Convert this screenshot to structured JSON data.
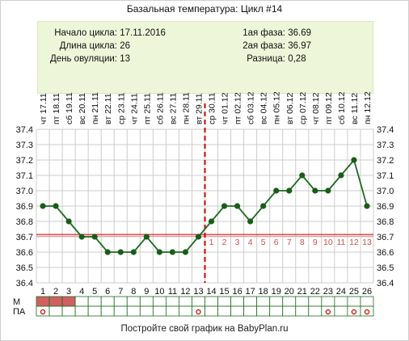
{
  "title": "Базальная температура: Цикл #14",
  "info": {
    "left": [
      {
        "label": "Начало цикла:",
        "value": "17.11.2016"
      },
      {
        "label": "Длина цикла:",
        "value": "26"
      },
      {
        "label": "День овуляции:",
        "value": "13"
      }
    ],
    "right": [
      {
        "label": "1ая фаза:",
        "value": "36.69"
      },
      {
        "label": "2ая фаза:",
        "value": "36.97"
      },
      {
        "label": "Разница:",
        "value": "0,28"
      }
    ]
  },
  "footer": "Постройте свой график на BabyPlan.ru",
  "colors": {
    "line": "#1e6b1e",
    "marker": "#1a5c1a",
    "coverline": "#cc0000",
    "ovulation": "#cc0000",
    "phase_numbers": "#d05050",
    "info_bg": "#eef6d9",
    "menstruation": "#d06060",
    "grid": "#cccccc"
  },
  "chart_data": {
    "type": "line",
    "title": "Базальная температура: Цикл #14",
    "x_days": [
      1,
      2,
      3,
      4,
      5,
      6,
      7,
      8,
      9,
      10,
      11,
      12,
      13,
      14,
      15,
      16,
      17,
      18,
      19,
      20,
      21,
      22,
      23,
      24,
      25,
      26
    ],
    "dates": [
      "17.11",
      "18.11",
      "19.11",
      "20.11",
      "21.11",
      "22.11",
      "23.11",
      "24.11",
      "25.11",
      "26.11",
      "27.11",
      "28.11",
      "29.11",
      "30.11",
      "01.12",
      "02.12",
      "03.12",
      "04.12",
      "05.12",
      "06.12",
      "07.12",
      "08.12",
      "09.12",
      "10.12",
      "11.12",
      "12.12"
    ],
    "weekdays": [
      "чт",
      "пт",
      "сб",
      "вс",
      "пн",
      "вт",
      "ср",
      "чт",
      "пт",
      "сб",
      "вс",
      "пн",
      "вт",
      "ср",
      "чт",
      "пт",
      "сб",
      "вс",
      "пн",
      "вт",
      "ср",
      "чт",
      "пт",
      "сб",
      "вс",
      "пн"
    ],
    "series": [
      {
        "values": [
          36.9,
          36.9,
          36.8,
          36.7,
          36.7,
          36.6,
          36.6,
          36.6,
          36.7,
          36.6,
          36.6,
          36.6,
          36.7,
          36.8,
          36.9,
          36.9,
          36.8,
          36.9,
          37.0,
          37.0,
          37.1,
          37.0,
          37.0,
          37.1,
          37.2,
          36.9
        ]
      }
    ],
    "ylim": [
      36.4,
      37.4
    ],
    "yticks": [
      "36.4",
      "36.5",
      "36.6",
      "36.7",
      "36.8",
      "36.9",
      "37.0",
      "37.1",
      "37.2",
      "37.3",
      "37.4"
    ],
    "coverline": 36.71,
    "ovulation_day": 13,
    "phase2_labels": [
      "1",
      "2",
      "3",
      "4",
      "5",
      "6",
      "7",
      "8",
      "9",
      "10",
      "11",
      "12",
      "13"
    ],
    "grid": true,
    "rows": [
      {
        "label": "М",
        "marked_days": [
          1,
          2,
          3
        ]
      },
      {
        "label": "ПА",
        "marked_days": [
          1,
          13,
          23,
          25,
          26
        ]
      }
    ]
  }
}
